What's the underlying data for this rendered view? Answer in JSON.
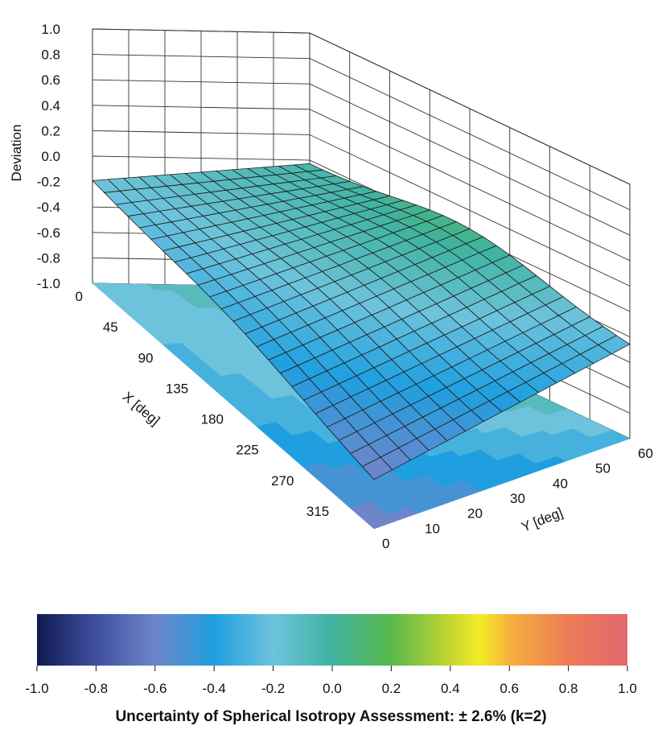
{
  "chart_data": {
    "type": "surface3d",
    "title": "",
    "zlabel": "Deviation",
    "xlabel": "X [deg]",
    "ylabel": "Y [deg]",
    "z_ticks": [
      "1.0",
      "0.8",
      "0.6",
      "0.4",
      "0.2",
      "0.0",
      "-0.2",
      "-0.4",
      "-0.6",
      "-0.8",
      "-1.0"
    ],
    "x_ticks": [
      "0",
      "45",
      "90",
      "135",
      "180",
      "225",
      "270",
      "315"
    ],
    "y_ticks": [
      "0",
      "10",
      "20",
      "30",
      "40",
      "50",
      "60"
    ],
    "xlim": [
      0,
      360
    ],
    "ylim": [
      0,
      60
    ],
    "zlim": [
      -1.0,
      1.0
    ],
    "surface_corners": {
      "x0_y0": -0.2,
      "x0_y60": -0.05,
      "x360_y0": -0.62,
      "x360_y60": -0.28,
      "peak": {
        "x": 180,
        "y": 60,
        "z": 0.1
      }
    },
    "grid": true,
    "colorbar": {
      "ticks": [
        "-1.0",
        "-0.8",
        "-0.6",
        "-0.4",
        "-0.2",
        "0.0",
        "0.2",
        "0.4",
        "0.6",
        "0.8",
        "1.0"
      ],
      "range": [
        -1.0,
        1.0
      ],
      "stops": [
        {
          "v": -1.0,
          "color": "#101a4e"
        },
        {
          "v": -0.8,
          "color": "#3f4fa0"
        },
        {
          "v": -0.6,
          "color": "#6d86c9"
        },
        {
          "v": -0.4,
          "color": "#1f9fdf"
        },
        {
          "v": -0.2,
          "color": "#6ec3dc"
        },
        {
          "v": 0.0,
          "color": "#40b3a0"
        },
        {
          "v": 0.2,
          "color": "#58b84c"
        },
        {
          "v": 0.4,
          "color": "#c4d630"
        },
        {
          "v": 0.5,
          "color": "#f4ec26"
        },
        {
          "v": 0.6,
          "color": "#f6b13c"
        },
        {
          "v": 0.8,
          "color": "#ec7b57"
        },
        {
          "v": 1.0,
          "color": "#e1686e"
        }
      ]
    }
  },
  "footer": {
    "text": "Uncertainty of Spherical Isotropy Assessment: ± 2.6% (k=2)"
  }
}
